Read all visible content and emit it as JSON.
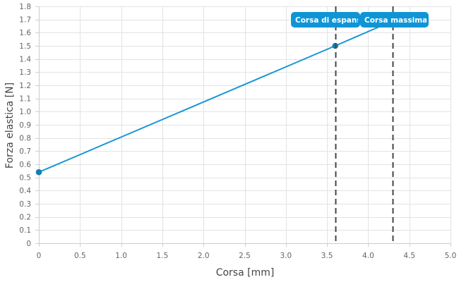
{
  "chart_data": {
    "type": "line",
    "xlabel": "Corsa [mm]",
    "ylabel": "Forza elastica [N]",
    "xlim": [
      0,
      5
    ],
    "ylim": [
      0,
      1.8
    ],
    "x_ticks": [
      "0",
      "0.5",
      "1.0",
      "1.5",
      "2.0",
      "2.5",
      "3.0",
      "3.5",
      "4.0",
      "4.5",
      "5.0"
    ],
    "y_ticks": [
      "0",
      "0.1",
      "0.2",
      "0.3",
      "0.4",
      "0.5",
      "0.6",
      "0.7",
      "0.8",
      "0.9",
      "1.0",
      "1.1",
      "1.2",
      "1.3",
      "1.4",
      "1.5",
      "1.6",
      "1.7",
      "1.8"
    ],
    "grid": true,
    "series": [
      {
        "x": [
          0,
          3.6,
          4.3
        ],
        "y": [
          0.54,
          1.5,
          1.69
        ],
        "color": "#1a96d4"
      }
    ],
    "markers": [
      {
        "x": 0,
        "y": 0.54
      },
      {
        "x": 3.6,
        "y": 1.5
      }
    ],
    "vertical_lines": [
      {
        "x": 3.6,
        "label": "Corsa di espansi",
        "color": "#444444",
        "style": "dashed"
      },
      {
        "x": 4.3,
        "label": "Corsa massima",
        "color": "#444444",
        "style": "dashed"
      }
    ],
    "annotation_color": "#0f95d6"
  }
}
